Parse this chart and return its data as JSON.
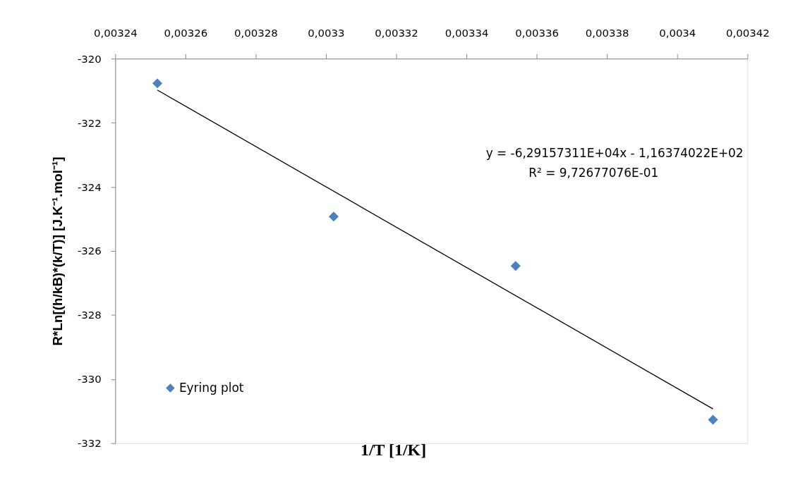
{
  "chart_data": {
    "type": "scatter",
    "xlabel": "1/T [1/K]",
    "ylabel": "R*Ln[(h/kB)*(k/T)] [J.K⁻¹.mol⁻¹]",
    "annotations": [
      "y = -6,29157311E+04x - 1,16374022E+02",
      "R² = 9,72677076E-01"
    ],
    "series": [
      {
        "name": "Eyring plot",
        "color": "#4f81bd",
        "x": [
          0.003252,
          0.0033022,
          0.003354,
          0.0034102
        ],
        "values": [
          -320.77,
          -324.93,
          -326.47,
          -331.27
        ]
      },
      {
        "type": "line",
        "marker": "none",
        "color": "#000000",
        "x": [
          0.003252,
          0.0034102
        ],
        "values": [
          -320.98,
          -330.93
        ]
      }
    ],
    "xlim": [
      0.00324,
      0.00342
    ],
    "xticks": [
      {
        "value": 0.00324,
        "label": "0,00324"
      },
      {
        "value": 0.00326,
        "label": "0,00326"
      },
      {
        "value": 0.00328,
        "label": "0,00328"
      },
      {
        "value": 0.0033,
        "label": "0,0033"
      },
      {
        "value": 0.00332,
        "label": "0,00332"
      },
      {
        "value": 0.00334,
        "label": "0,00334"
      },
      {
        "value": 0.00336,
        "label": "0,00336"
      },
      {
        "value": 0.00338,
        "label": "0,00338"
      },
      {
        "value": 0.0034,
        "label": "0,0034"
      },
      {
        "value": 0.00342,
        "label": "0,00342"
      }
    ],
    "ylim": [
      -332,
      -320
    ],
    "yticks": [
      -332,
      -330,
      -328,
      -326,
      -324,
      -322,
      -320
    ],
    "grid": false,
    "legend": "bottom left",
    "marker": "diamond"
  }
}
